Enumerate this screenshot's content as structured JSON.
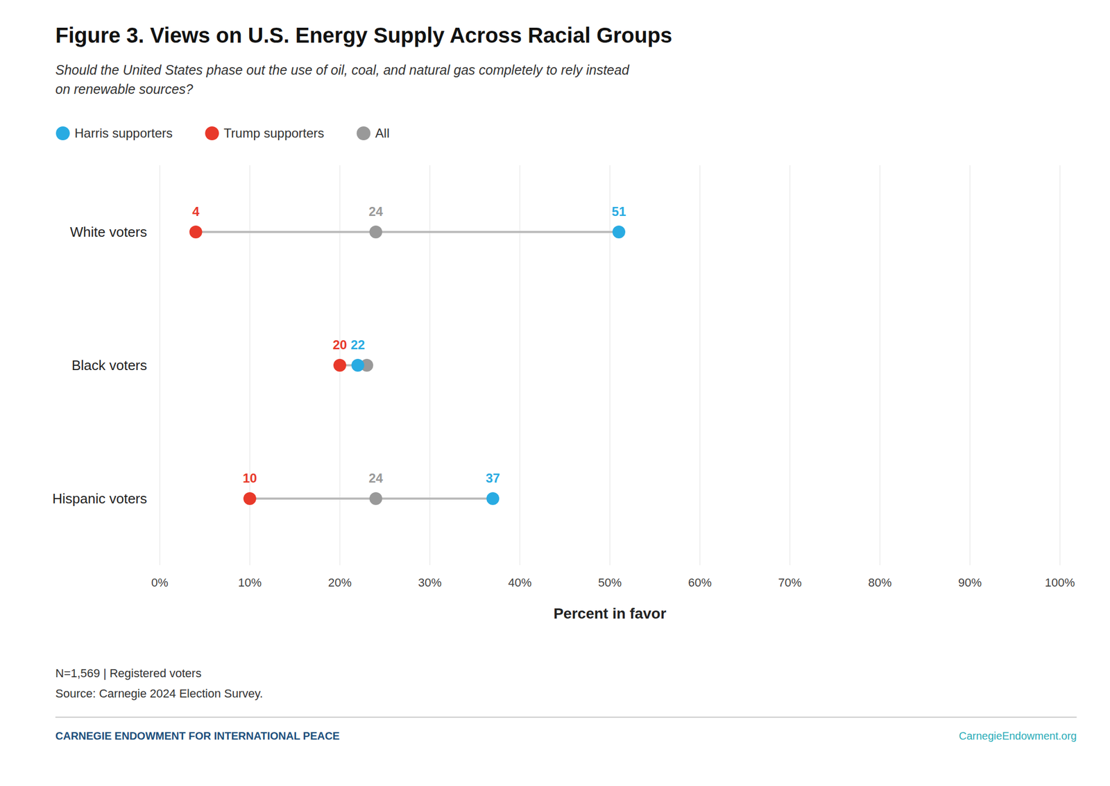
{
  "chart_data": {
    "type": "dot",
    "title": "Figure 3. Views on U.S. Energy Supply Across Racial Groups",
    "subtitle": [
      "Should the United States phase out the use of oil, coal, and natural gas completely to rely instead",
      "on renewable sources?"
    ],
    "xlabel": "Percent in favor",
    "categories": [
      "White voters",
      "Black voters",
      "Hispanic voters"
    ],
    "series": [
      {
        "name": "Harris supporters",
        "color": "#29ABE2",
        "values": [
          51,
          22,
          37
        ]
      },
      {
        "name": "Trump supporters",
        "color": "#E8392A",
        "values": [
          4,
          20,
          10
        ]
      },
      {
        "name": "All",
        "color": "#999999",
        "values": [
          24,
          23,
          24
        ],
        "value_labels": [
          "24",
          null,
          "24"
        ]
      }
    ],
    "xlim": [
      0,
      100
    ],
    "xticks": [
      {
        "value": 0,
        "label": "0%"
      },
      {
        "value": 10,
        "label": "10%"
      },
      {
        "value": 20,
        "label": "20%"
      },
      {
        "value": 30,
        "label": "30%"
      },
      {
        "value": 40,
        "label": "40%"
      },
      {
        "value": 50,
        "label": "50%"
      },
      {
        "value": 60,
        "label": "60%"
      },
      {
        "value": 70,
        "label": "70%"
      },
      {
        "value": 80,
        "label": "80%"
      },
      {
        "value": 90,
        "label": "90%"
      },
      {
        "value": 100,
        "label": "100%"
      }
    ],
    "grid": true,
    "legend": "top",
    "data_labels": true,
    "notes": [
      "N=1,569 | Registered voters",
      "Source: Carnegie 2024 Election Survey."
    ],
    "footer": [
      {
        "text": "CARNEGIE ENDOWMENT FOR INTERNATIONAL PEACE",
        "color": "#1D4F7C"
      },
      {
        "text": "CarnegieEndowment.org",
        "color": "#2AACB8"
      }
    ]
  }
}
